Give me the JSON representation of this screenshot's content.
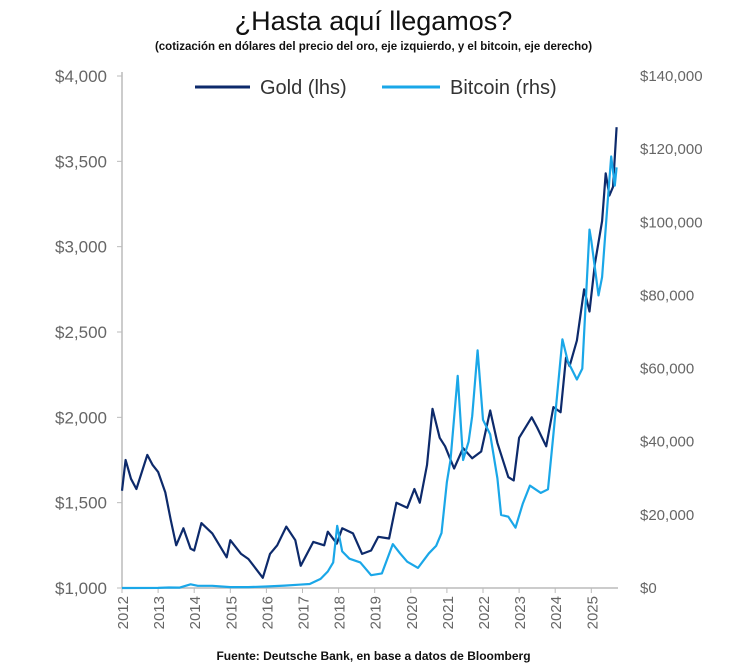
{
  "chart_data": {
    "type": "line",
    "title": "¿Hasta aquí llegamos?",
    "subtitle": "(cotización en dólares del precio del oro, eje izquierdo, y el bitcoin, eje derecho)",
    "source": "Fuente: Deutsche Bank, en base a datos de Bloomberg",
    "legend_position": "top",
    "grid": false,
    "x_ticks": [
      "2012",
      "2013",
      "2014",
      "2015",
      "2016",
      "2017",
      "2018",
      "2019",
      "2020",
      "2021",
      "2022",
      "2023",
      "2024",
      "2025"
    ],
    "xlim": [
      2012,
      2025.75
    ],
    "y_left": {
      "ylim": [
        1000,
        4000
      ],
      "ticks": [
        "$1,000",
        "$1,500",
        "$2,000",
        "$2,500",
        "$3,000",
        "$3,500",
        "$4,000"
      ]
    },
    "y_right": {
      "ylim": [
        0,
        140000
      ],
      "ticks": [
        "$0",
        "$20,000",
        "$40,000",
        "$60,000",
        "$80,000",
        "$100,000",
        "$120,000",
        "$140,000"
      ]
    },
    "series": [
      {
        "name": "Gold (lhs)",
        "axis": "left",
        "color": "#0d2a6b",
        "x": [
          2012.0,
          2012.1,
          2012.25,
          2012.4,
          2012.7,
          2012.85,
          2013.0,
          2013.2,
          2013.35,
          2013.5,
          2013.7,
          2013.9,
          2014.0,
          2014.2,
          2014.5,
          2014.9,
          2015.0,
          2015.3,
          2015.5,
          2015.9,
          2016.1,
          2016.3,
          2016.55,
          2016.8,
          2016.95,
          2017.3,
          2017.6,
          2017.7,
          2017.95,
          2018.1,
          2018.4,
          2018.65,
          2018.9,
          2019.1,
          2019.4,
          2019.6,
          2019.9,
          2020.1,
          2020.25,
          2020.45,
          2020.6,
          2020.8,
          2020.95,
          2021.2,
          2021.45,
          2021.7,
          2021.95,
          2022.2,
          2022.4,
          2022.7,
          2022.85,
          2023.0,
          2023.35,
          2023.5,
          2023.75,
          2023.95,
          2024.15,
          2024.3,
          2024.4,
          2024.6,
          2024.8,
          2024.95,
          2025.1,
          2025.3,
          2025.4,
          2025.5,
          2025.6,
          2025.7
        ],
        "y": [
          1570,
          1750,
          1640,
          1580,
          1780,
          1720,
          1680,
          1560,
          1400,
          1250,
          1350,
          1230,
          1220,
          1380,
          1320,
          1180,
          1280,
          1200,
          1170,
          1060,
          1200,
          1250,
          1360,
          1280,
          1130,
          1270,
          1250,
          1330,
          1260,
          1350,
          1320,
          1200,
          1220,
          1300,
          1290,
          1500,
          1470,
          1580,
          1500,
          1720,
          2050,
          1880,
          1830,
          1700,
          1820,
          1760,
          1800,
          2040,
          1850,
          1650,
          1630,
          1880,
          2000,
          1940,
          1830,
          2060,
          2030,
          2350,
          2300,
          2450,
          2750,
          2620,
          2900,
          3150,
          3430,
          3300,
          3350,
          3700
        ]
      },
      {
        "name": "Bitcoin (rhs)",
        "axis": "right",
        "color": "#1aa7e8",
        "x": [
          2012.0,
          2013.0,
          2013.3,
          2013.6,
          2013.9,
          2014.1,
          2014.5,
          2015.0,
          2015.5,
          2016.0,
          2016.5,
          2016.9,
          2017.2,
          2017.5,
          2017.7,
          2017.85,
          2017.96,
          2018.1,
          2018.3,
          2018.6,
          2018.9,
          2019.2,
          2019.5,
          2019.7,
          2019.9,
          2020.2,
          2020.5,
          2020.7,
          2020.85,
          2021.0,
          2021.1,
          2021.3,
          2021.45,
          2021.6,
          2021.7,
          2021.85,
          2022.0,
          2022.2,
          2022.4,
          2022.5,
          2022.7,
          2022.9,
          2023.1,
          2023.3,
          2023.6,
          2023.8,
          2023.95,
          2024.2,
          2024.35,
          2024.6,
          2024.75,
          2024.95,
          2025.0,
          2025.2,
          2025.3,
          2025.45,
          2025.55,
          2025.65,
          2025.7
        ],
        "y": [
          10,
          20,
          150,
          100,
          1000,
          600,
          600,
          250,
          250,
          400,
          650,
          900,
          1100,
          2500,
          4500,
          7000,
          17000,
          10000,
          8000,
          7000,
          3500,
          4000,
          12000,
          9500,
          7200,
          5500,
          9500,
          11500,
          15000,
          29000,
          35000,
          58000,
          35000,
          40000,
          47000,
          65000,
          46000,
          42000,
          30000,
          20000,
          19500,
          16500,
          23000,
          28000,
          26000,
          27000,
          42000,
          68000,
          62000,
          57000,
          60000,
          98000,
          95000,
          80000,
          85000,
          105000,
          118000,
          110000,
          115000
        ]
      }
    ]
  }
}
